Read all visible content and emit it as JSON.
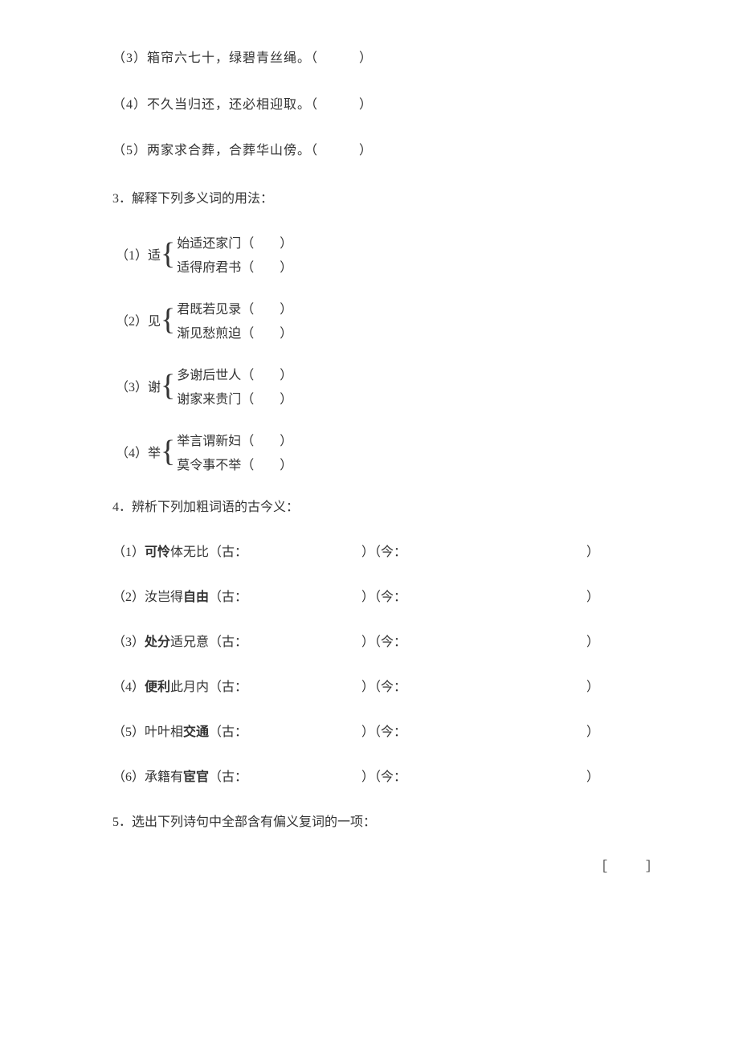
{
  "colors": {
    "background": "#ffffff",
    "text": "#333333"
  },
  "typography": {
    "font_family": "SimSun",
    "base_fontsize": 16,
    "line_spacing": 32,
    "letter_spacing": 1
  },
  "q_lines": [
    "（3）箱帘六七十，绿碧青丝绳。（　　　）",
    "（4）不久当归还，还必相迎取。（　　　）",
    "（5）两家求合葬，合葬华山傍。（　　　）"
  ],
  "q3": {
    "title": "3．解释下列多义词的用法：",
    "items": [
      {
        "prefix": "（1）适",
        "top": "始适还家门（　　）",
        "bottom": "适得府君书（　　）"
      },
      {
        "prefix": "（2）见",
        "top": "君既若见录（　　）",
        "bottom": "渐见愁煎迫（　　）"
      },
      {
        "prefix": "（3）谢",
        "top": "多谢后世人（　　）",
        "bottom": "谢家来贵门（　　）"
      },
      {
        "prefix": "（4）举",
        "top": "举言谓新妇（　　）",
        "bottom": "莫令事不举（　　）"
      }
    ]
  },
  "q4": {
    "title": "4．辨析下列加粗词语的古今义：",
    "items": [
      {
        "num": "（1）",
        "bold": "可怜",
        "rest": "体无比（古：",
        "mid": "）（今：",
        "end": "）"
      },
      {
        "num": "（2）汝岂得",
        "bold": "自由",
        "rest": "（古：",
        "mid": "）（今：",
        "end": "）"
      },
      {
        "num": "（3）",
        "bold": "处分",
        "rest": "适兄意（古：",
        "mid": "）（今：",
        "end": "）"
      },
      {
        "num": "（4）",
        "bold": "便利",
        "rest": "此月内（古：",
        "mid": "）（今：",
        "end": "）"
      },
      {
        "num": "（5）叶叶相",
        "bold": "交通",
        "rest": "（古：",
        "mid": "）（今：",
        "end": "）"
      },
      {
        "num": "（6）承籍有",
        "bold": "宦官",
        "rest": "（古：",
        "mid": "）（今：",
        "end": "）"
      }
    ]
  },
  "q5": {
    "title": "5．选出下列诗句中全部含有偏义复词的一项：",
    "bracket": "［　　　］"
  }
}
